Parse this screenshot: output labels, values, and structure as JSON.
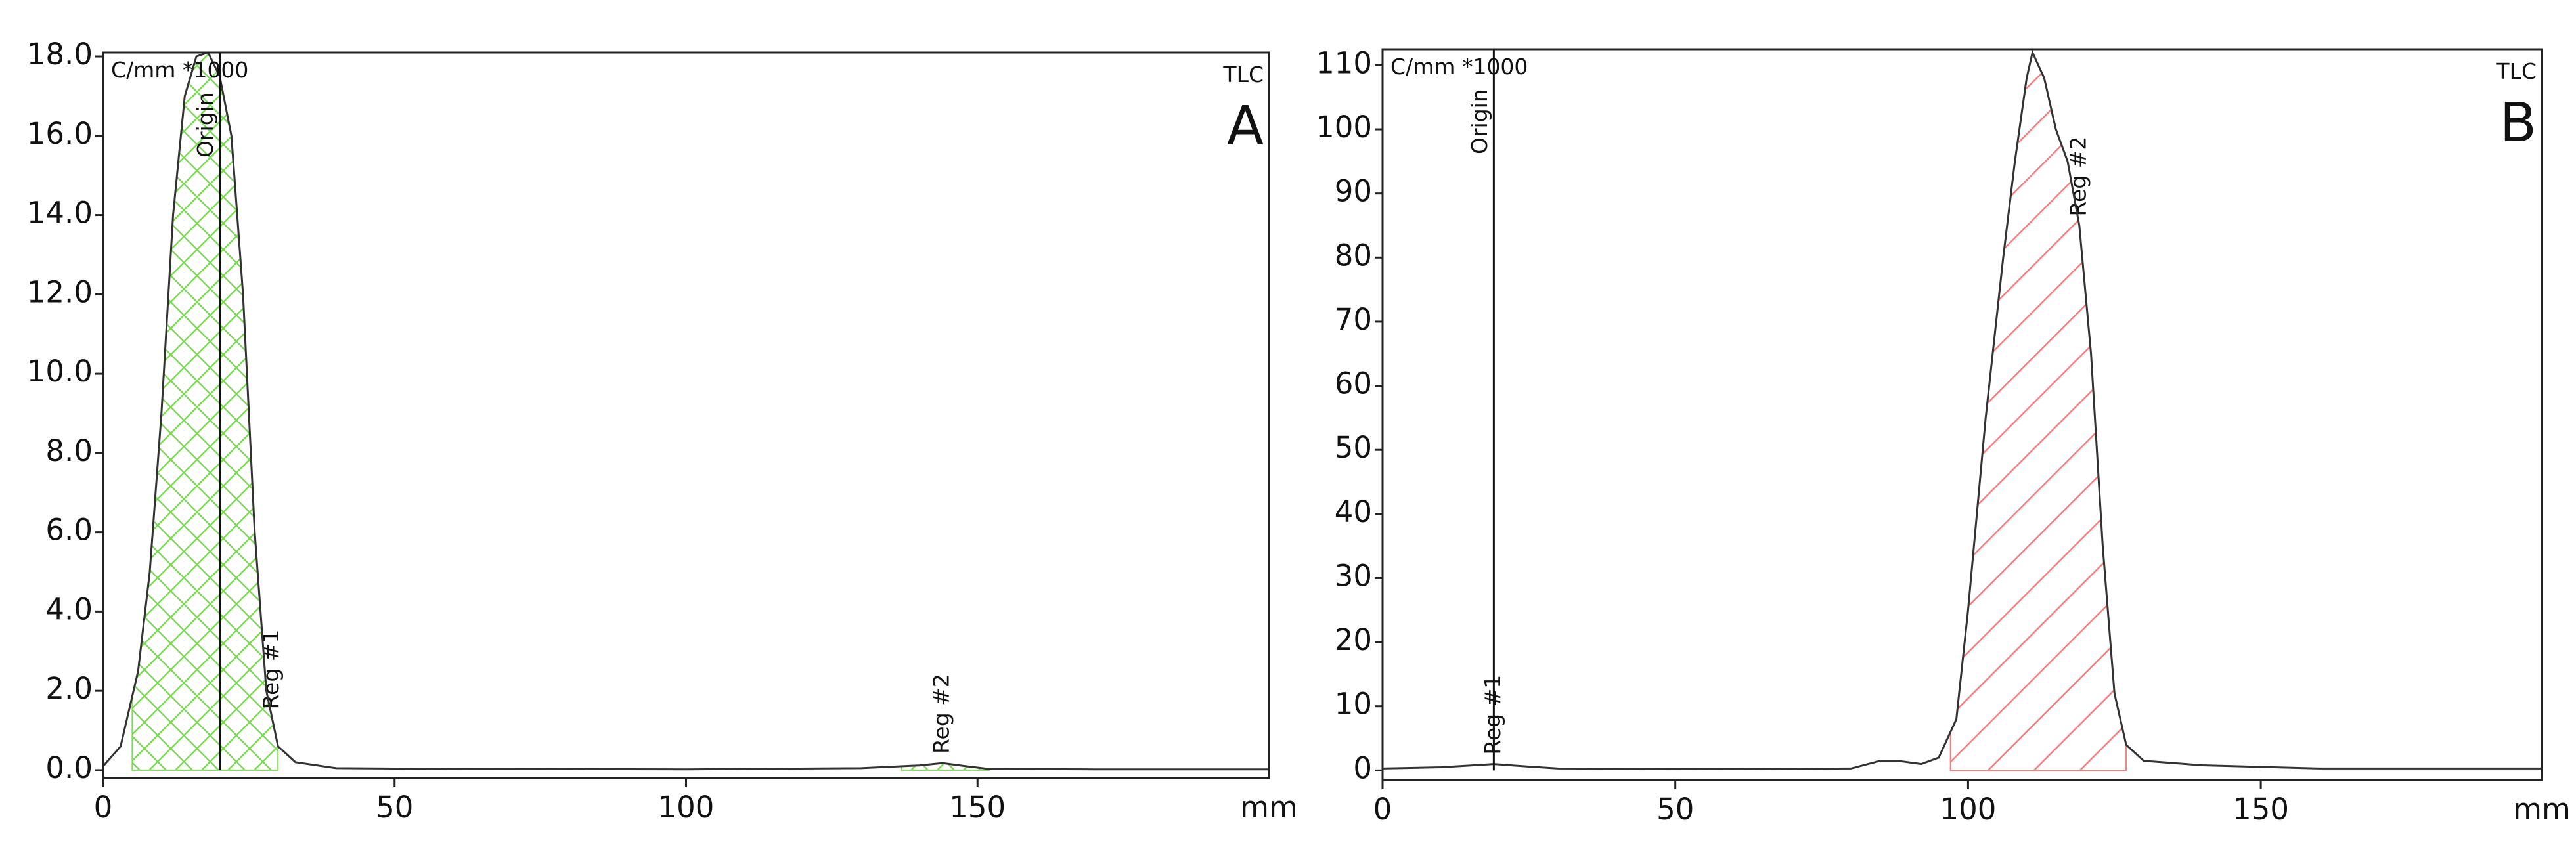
{
  "chart_data": [
    {
      "type": "line",
      "panel_label": "A",
      "method_label": "TLC",
      "unit_label": "C/mm *1000",
      "x_unit": "mm",
      "xlim": [
        0,
        200
      ],
      "xticks": [
        0,
        50,
        100,
        150
      ],
      "ylim": [
        -0.2,
        18.1
      ],
      "yticks": [
        {
          "value": 0,
          "label": "0.0"
        },
        {
          "value": 2,
          "label": "2.0"
        },
        {
          "value": 4,
          "label": "4.0"
        },
        {
          "value": 6,
          "label": "6.0"
        },
        {
          "value": 8,
          "label": "8.0"
        },
        {
          "value": 10,
          "label": "10.0"
        },
        {
          "value": 12,
          "label": "12.0"
        },
        {
          "value": 14,
          "label": "14.0"
        },
        {
          "value": 16,
          "label": "16.0"
        },
        {
          "value": 18,
          "label": "18.0"
        }
      ],
      "x": [
        0,
        3,
        6,
        8,
        10,
        12,
        14,
        16,
        18,
        20,
        22,
        24,
        26,
        28,
        30,
        33,
        40,
        60,
        100,
        130,
        140,
        144,
        148,
        152,
        170,
        200
      ],
      "series": [
        {
          "color": "#333333",
          "values": [
            0.1,
            0.6,
            2.5,
            5,
            9,
            14,
            17,
            18,
            18.1,
            17.5,
            16,
            12,
            6,
            2,
            0.6,
            0.2,
            0.05,
            0.03,
            0.02,
            0.05,
            0.12,
            0.18,
            0.1,
            0.03,
            0.02,
            0.02
          ]
        }
      ],
      "origin": {
        "label": "Origin",
        "x": 20
      },
      "regions": [
        {
          "label": "Reg #1",
          "start": 5,
          "end": 30,
          "label_x": 29,
          "color": "#7ed957",
          "hatch": "cross"
        },
        {
          "label": "Reg #2",
          "start": 137,
          "end": 152,
          "label_x": 144,
          "color": "#7ed957",
          "hatch": "cross"
        }
      ]
    },
    {
      "type": "line",
      "panel_label": "B",
      "method_label": "TLC",
      "unit_label": "C/mm *1000",
      "x_unit": "mm",
      "xlim": [
        0,
        198
      ],
      "xticks": [
        0,
        50,
        100,
        150
      ],
      "ylim": [
        -1.5,
        112.5
      ],
      "yticks": [
        0,
        10,
        20,
        30,
        40,
        50,
        60,
        70,
        80,
        90,
        100,
        110
      ],
      "x": [
        0,
        10,
        19,
        25,
        30,
        60,
        80,
        85,
        88,
        92,
        95,
        98,
        100,
        103,
        106,
        108,
        110,
        111,
        113,
        115,
        117,
        119,
        121,
        123,
        125,
        127,
        130,
        140,
        160,
        198
      ],
      "series": [
        {
          "color": "#333333",
          "values": [
            0.3,
            0.5,
            1,
            0.6,
            0.3,
            0.2,
            0.3,
            1.5,
            1.5,
            1,
            2,
            8,
            25,
            55,
            80,
            95,
            108,
            112,
            108,
            100,
            95,
            85,
            65,
            35,
            12,
            4,
            1.5,
            0.8,
            0.3,
            0.3
          ]
        }
      ],
      "origin": {
        "label": "Origin",
        "x": 19
      },
      "regions": [
        {
          "label": "Reg #1",
          "start": 12,
          "end": 26,
          "label_x": 19,
          "color": "#f08080",
          "hatch": "none"
        },
        {
          "label": "Reg #2",
          "start": 97,
          "end": 127,
          "label_x": 119,
          "color": "#f08080",
          "hatch": "diag"
        }
      ]
    }
  ]
}
